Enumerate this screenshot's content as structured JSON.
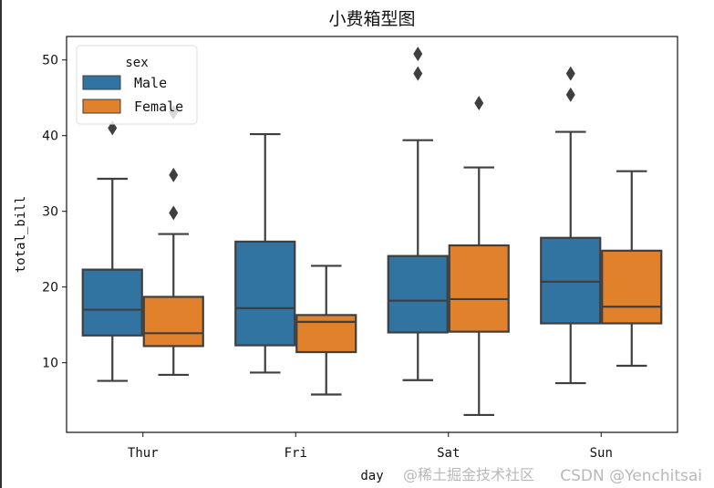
{
  "chart_data": {
    "type": "box",
    "title": "小费箱型图",
    "xlabel": "day",
    "ylabel": "total_bill",
    "categories": [
      "Thur",
      "Fri",
      "Sat",
      "Sun"
    ],
    "ylim": [
      0.8,
      53.1
    ],
    "yticks": [
      10,
      20,
      30,
      40,
      50
    ],
    "grid": false,
    "legend": {
      "title": "sex",
      "placement": "top-left"
    },
    "series": [
      {
        "name": "Male",
        "color": "#3274a1",
        "boxes": [
          {
            "whislo": 7.6,
            "q1": 13.6,
            "med": 17.0,
            "q3": 22.3,
            "whishi": 34.3,
            "fliers": [
              41.0
            ]
          },
          {
            "whislo": 8.7,
            "q1": 12.3,
            "med": 17.2,
            "q3": 26.0,
            "whishi": 40.2,
            "fliers": []
          },
          {
            "whislo": 7.7,
            "q1": 14.0,
            "med": 18.2,
            "q3": 24.1,
            "whishi": 39.4,
            "fliers": [
              50.8,
              48.2
            ]
          },
          {
            "whislo": 7.3,
            "q1": 15.2,
            "med": 20.7,
            "q3": 26.5,
            "whishi": 40.5,
            "fliers": [
              48.2,
              45.4
            ]
          }
        ]
      },
      {
        "name": "Female",
        "color": "#e1812c",
        "boxes": [
          {
            "whislo": 8.4,
            "q1": 12.2,
            "med": 13.9,
            "q3": 18.7,
            "whishi": 27.0,
            "fliers": [
              43.1,
              34.8,
              29.8
            ]
          },
          {
            "whislo": 5.8,
            "q1": 11.4,
            "med": 15.4,
            "q3": 16.3,
            "whishi": 22.8,
            "fliers": []
          },
          {
            "whislo": 3.1,
            "q1": 14.1,
            "med": 18.4,
            "q3": 25.5,
            "whishi": 35.8,
            "fliers": [
              44.3
            ]
          },
          {
            "whislo": 9.6,
            "q1": 15.2,
            "med": 17.4,
            "q3": 24.8,
            "whishi": 35.3,
            "fliers": []
          }
        ]
      }
    ]
  },
  "watermark": {
    "line1": "@稀土掘金技术社区",
    "line2": "CSDN @Yenchitsai"
  }
}
